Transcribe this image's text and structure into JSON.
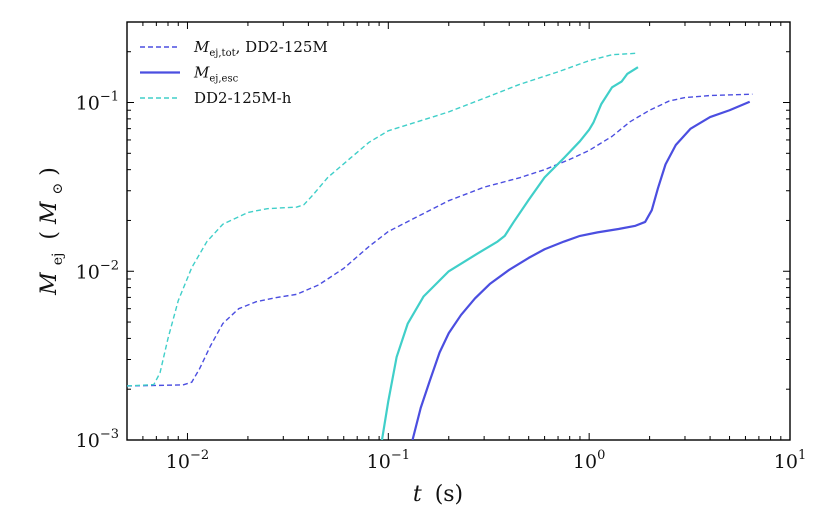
{
  "chart_data": {
    "type": "line",
    "title": "",
    "xlabel_var": "t",
    "xlabel_unit": "(s)",
    "ylabel_var": "M",
    "ylabel_sub": "ej",
    "ylabel_unit_var": "M",
    "ylabel_unit_sub": "⊙",
    "xscale": "log",
    "yscale": "log",
    "xlim": [
      0.005,
      10
    ],
    "ylim": [
      0.001,
      0.3
    ],
    "x_ticks": [
      {
        "value": 0.01,
        "base": "10",
        "exp": "−2"
      },
      {
        "value": 0.1,
        "base": "10",
        "exp": "−1"
      },
      {
        "value": 1,
        "base": "10",
        "exp": "0"
      },
      {
        "value": 10,
        "base": "10",
        "exp": "1"
      }
    ],
    "y_ticks": [
      {
        "value": 0.001,
        "base": "10",
        "exp": "−3"
      },
      {
        "value": 0.01,
        "base": "10",
        "exp": "−2"
      },
      {
        "value": 0.1,
        "base": "10",
        "exp": "−1"
      }
    ],
    "legend_position": "top-left",
    "legend": [
      {
        "label_math": "M",
        "label_sub": "ej,tot",
        "label_suffix": ", DD2-125M",
        "color": "#4b4ee0",
        "style": "dashed",
        "series": "mej_tot"
      },
      {
        "label_math": "M",
        "label_sub": "ej,esc",
        "label_suffix": "",
        "color": "#4b4ee0",
        "style": "solid",
        "series": "mej_esc"
      },
      {
        "label_math": "",
        "label_sub": "",
        "label_suffix": "DD2-125M-h",
        "color": "#40cfc9",
        "style": "dashed",
        "series": "h_tot"
      }
    ],
    "series": [
      {
        "name": "mej_tot",
        "color": "#4b4ee0",
        "style": "dashed",
        "width": 1.4,
        "points": [
          [
            0.005,
            0.00209
          ],
          [
            0.0095,
            0.00212
          ],
          [
            0.0105,
            0.0022
          ],
          [
            0.0115,
            0.00265
          ],
          [
            0.013,
            0.0036
          ],
          [
            0.015,
            0.0049
          ],
          [
            0.018,
            0.006
          ],
          [
            0.022,
            0.0066
          ],
          [
            0.028,
            0.007
          ],
          [
            0.035,
            0.0073
          ],
          [
            0.045,
            0.0083
          ],
          [
            0.06,
            0.0104
          ],
          [
            0.08,
            0.014
          ],
          [
            0.1,
            0.0172
          ],
          [
            0.15,
            0.022
          ],
          [
            0.2,
            0.0262
          ],
          [
            0.3,
            0.0315
          ],
          [
            0.45,
            0.0358
          ],
          [
            0.6,
            0.04
          ],
          [
            0.8,
            0.046
          ],
          [
            1.0,
            0.052
          ],
          [
            1.3,
            0.063
          ],
          [
            1.6,
            0.077
          ],
          [
            2.0,
            0.09
          ],
          [
            2.5,
            0.102
          ],
          [
            3.0,
            0.107
          ],
          [
            4.0,
            0.11
          ],
          [
            6.5,
            0.112
          ]
        ]
      },
      {
        "name": "mej_esc",
        "color": "#4b4ee0",
        "style": "solid",
        "width": 2.2,
        "points": [
          [
            0.132,
            0.001
          ],
          [
            0.145,
            0.00155
          ],
          [
            0.16,
            0.0022
          ],
          [
            0.18,
            0.0033
          ],
          [
            0.2,
            0.0043
          ],
          [
            0.23,
            0.0055
          ],
          [
            0.27,
            0.0069
          ],
          [
            0.32,
            0.0084
          ],
          [
            0.4,
            0.0102
          ],
          [
            0.5,
            0.012
          ],
          [
            0.6,
            0.0135
          ],
          [
            0.75,
            0.015
          ],
          [
            0.9,
            0.0162
          ],
          [
            1.1,
            0.017
          ],
          [
            1.4,
            0.0178
          ],
          [
            1.7,
            0.0186
          ],
          [
            1.9,
            0.0196
          ],
          [
            2.05,
            0.023
          ],
          [
            2.2,
            0.031
          ],
          [
            2.4,
            0.043
          ],
          [
            2.7,
            0.056
          ],
          [
            3.2,
            0.07
          ],
          [
            4.0,
            0.082
          ],
          [
            5.0,
            0.09
          ],
          [
            6.3,
            0.101
          ]
        ]
      },
      {
        "name": "h_tot",
        "color": "#40cfc9",
        "style": "dashed",
        "width": 1.4,
        "points": [
          [
            0.005,
            0.00209
          ],
          [
            0.0068,
            0.00213
          ],
          [
            0.0073,
            0.0025
          ],
          [
            0.008,
            0.004
          ],
          [
            0.009,
            0.0067
          ],
          [
            0.0105,
            0.0105
          ],
          [
            0.0125,
            0.015
          ],
          [
            0.015,
            0.019
          ],
          [
            0.02,
            0.0223
          ],
          [
            0.025,
            0.0235
          ],
          [
            0.035,
            0.024
          ],
          [
            0.038,
            0.0248
          ],
          [
            0.042,
            0.0282
          ],
          [
            0.05,
            0.036
          ],
          [
            0.065,
            0.047
          ],
          [
            0.08,
            0.058
          ],
          [
            0.1,
            0.068
          ],
          [
            0.15,
            0.079
          ],
          [
            0.2,
            0.088
          ],
          [
            0.3,
            0.106
          ],
          [
            0.45,
            0.128
          ],
          [
            0.7,
            0.152
          ],
          [
            1.0,
            0.177
          ],
          [
            1.3,
            0.192
          ],
          [
            1.75,
            0.196
          ]
        ]
      },
      {
        "name": "h_esc",
        "color": "#40cfc9",
        "style": "solid",
        "width": 2.2,
        "points": [
          [
            0.093,
            0.001
          ],
          [
            0.1,
            0.0017
          ],
          [
            0.11,
            0.0031
          ],
          [
            0.125,
            0.0049
          ],
          [
            0.15,
            0.0071
          ],
          [
            0.2,
            0.01
          ],
          [
            0.28,
            0.0128
          ],
          [
            0.35,
            0.015
          ],
          [
            0.38,
            0.0162
          ],
          [
            0.42,
            0.0195
          ],
          [
            0.5,
            0.0265
          ],
          [
            0.6,
            0.036
          ],
          [
            0.75,
            0.047
          ],
          [
            0.9,
            0.059
          ],
          [
            1.0,
            0.069
          ],
          [
            1.05,
            0.076
          ],
          [
            1.15,
            0.098
          ],
          [
            1.3,
            0.123
          ],
          [
            1.45,
            0.133
          ],
          [
            1.55,
            0.148
          ],
          [
            1.75,
            0.162
          ]
        ]
      }
    ]
  }
}
